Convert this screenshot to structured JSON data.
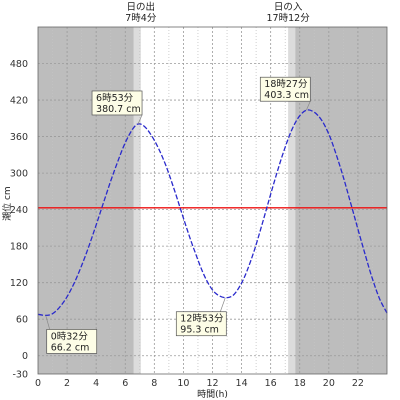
{
  "chart_data": {
    "type": "line",
    "xlabel": "時間(h)",
    "ylabel": "潮位 cm",
    "xlim": [
      0,
      24
    ],
    "ylim": [
      -30,
      540
    ],
    "x_ticks": [
      0,
      2,
      4,
      6,
      8,
      10,
      12,
      14,
      16,
      18,
      20,
      22
    ],
    "x_tick_labels": [
      "0",
      "2",
      "4",
      "6",
      "8",
      "10",
      "12",
      "14",
      "16",
      "18",
      "20",
      "22"
    ],
    "y_ticks": [
      -30,
      0,
      60,
      120,
      180,
      240,
      300,
      360,
      420,
      480
    ],
    "y_tick_labels": [
      "-30",
      "0",
      "60",
      "120",
      "180",
      "240",
      "300",
      "360",
      "420",
      "480"
    ],
    "grid": true,
    "reference_line": {
      "y": 243,
      "color": "#ee1111"
    },
    "series": [
      {
        "color": "#2a2acc",
        "points": [
          [
            0,
            68
          ],
          [
            0.53,
            66.2
          ],
          [
            1,
            69
          ],
          [
            1.5,
            80
          ],
          [
            2,
            97
          ],
          [
            2.5,
            120
          ],
          [
            3,
            148
          ],
          [
            3.5,
            180
          ],
          [
            4,
            215
          ],
          [
            4.5,
            251
          ],
          [
            5,
            287
          ],
          [
            5.5,
            320
          ],
          [
            6,
            350
          ],
          [
            6.5,
            372
          ],
          [
            6.88,
            380.7
          ],
          [
            7.3,
            377
          ],
          [
            7.8,
            362
          ],
          [
            8.3,
            340
          ],
          [
            8.8,
            312
          ],
          [
            9.3,
            278
          ],
          [
            9.8,
            241
          ],
          [
            10.3,
            204
          ],
          [
            10.8,
            170
          ],
          [
            11.3,
            139
          ],
          [
            11.8,
            115
          ],
          [
            12.3,
            101
          ],
          [
            12.88,
            95.3
          ],
          [
            13.4,
            99
          ],
          [
            13.9,
            115
          ],
          [
            14.4,
            141
          ],
          [
            14.9,
            175
          ],
          [
            15.4,
            215
          ],
          [
            15.9,
            257
          ],
          [
            16.4,
            298
          ],
          [
            16.9,
            336
          ],
          [
            17.4,
            368
          ],
          [
            17.9,
            391
          ],
          [
            18.45,
            403.3
          ],
          [
            19,
            400
          ],
          [
            19.5,
            387
          ],
          [
            20,
            364
          ],
          [
            20.5,
            331
          ],
          [
            21,
            293
          ],
          [
            21.5,
            251
          ],
          [
            22,
            208
          ],
          [
            22.5,
            166
          ],
          [
            23,
            126
          ],
          [
            23.5,
            93
          ],
          [
            24,
            70
          ]
        ]
      }
    ],
    "daylight": {
      "sunrise_hour": 7.07,
      "sunset_hour": 17.2,
      "twilight_minutes": 30,
      "night_color": "#bdbdbd",
      "twilight_color": "#dcdcdc",
      "day_color": "#ffffff"
    },
    "sun_labels": [
      {
        "hour": 7.07,
        "title": "日の出",
        "time": "7時4分"
      },
      {
        "hour": 17.2,
        "title": "日の入",
        "time": "17時12分"
      }
    ],
    "annotations": [
      {
        "text_time": "6時53分",
        "text_level": "380.7 cm",
        "x": 6.88,
        "y": 380.7,
        "placement": "above-left"
      },
      {
        "text_time": "18時27分",
        "text_level": "403.3 cm",
        "x": 18.45,
        "y": 403.3,
        "placement": "above-left"
      },
      {
        "text_time": "0時32分",
        "text_level": "66.2 cm",
        "x": 0.53,
        "y": 66.2,
        "placement": "below-right"
      },
      {
        "text_time": "12時53分",
        "text_level": "95.3 cm",
        "x": 12.88,
        "y": 95.3,
        "placement": "below"
      }
    ]
  }
}
